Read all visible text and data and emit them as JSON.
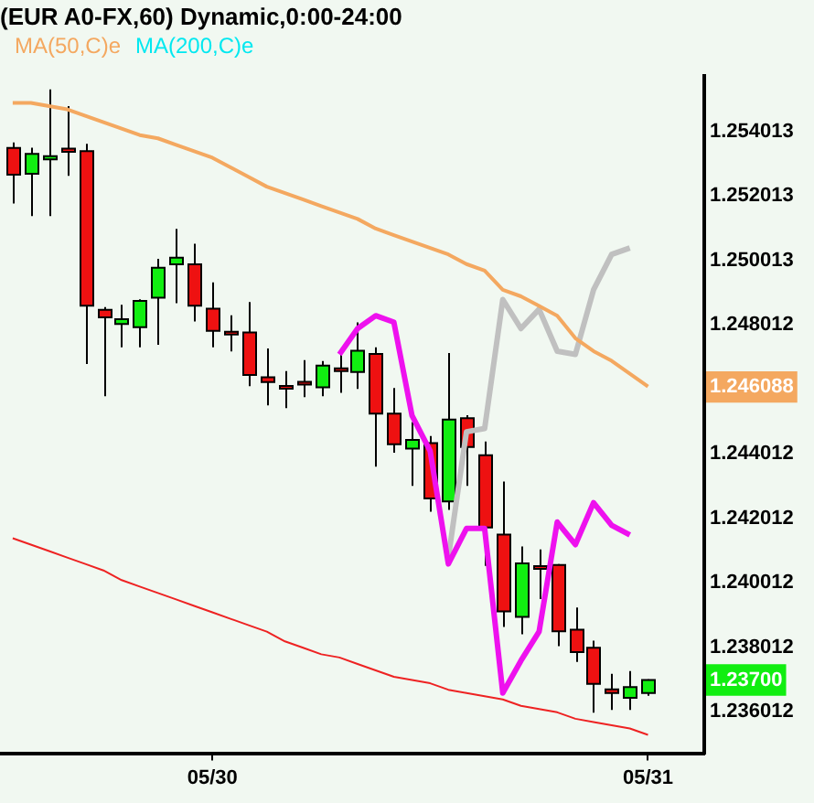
{
  "chart_data": {
    "type": "candlestick",
    "title": "(EUR A0-FX,60) Dynamic,0:00-24:00",
    "categories": [
      null,
      null,
      null,
      null,
      null,
      null,
      null,
      null,
      null,
      null,
      null,
      "05/30",
      null,
      null,
      null,
      null,
      null,
      null,
      null,
      null,
      null,
      null,
      null,
      null,
      null,
      null,
      null,
      null,
      null,
      null,
      null,
      null,
      null,
      null,
      null,
      "05/31"
    ],
    "ohlc": [
      [
        1.2535,
        1.25367,
        1.25178,
        1.25267
      ],
      [
        1.2527,
        1.25351,
        1.25139,
        1.25332
      ],
      [
        1.25315,
        1.25532,
        1.25139,
        1.25325
      ],
      [
        1.25348,
        1.2548,
        1.25264,
        1.25338
      ],
      [
        1.2534,
        1.25363,
        1.2468,
        1.24861
      ],
      [
        1.24848,
        1.24857,
        1.2458,
        1.24825
      ],
      [
        1.24804,
        1.24864,
        1.24732,
        1.24819
      ],
      [
        1.24794,
        1.24881,
        1.24732,
        1.24876
      ],
      [
        1.24886,
        1.25006,
        1.2474,
        1.24979
      ],
      [
        1.24989,
        1.25099,
        1.24869,
        1.2501
      ],
      [
        1.24989,
        1.25053,
        1.24812,
        1.24861
      ],
      [
        1.24852,
        1.24933,
        1.24732,
        1.24783
      ],
      [
        1.2478,
        1.24831,
        1.24719,
        1.24772
      ],
      [
        1.24778,
        1.24872,
        1.24611,
        1.24646
      ],
      [
        1.24639,
        1.24728,
        1.24552,
        1.24624
      ],
      [
        1.24612,
        1.24658,
        1.24543,
        1.24605
      ],
      [
        1.24625,
        1.24692,
        1.24577,
        1.24617
      ],
      [
        1.24608,
        1.24689,
        1.2458,
        1.24675
      ],
      [
        1.24667,
        1.24719,
        1.24591,
        1.24659
      ],
      [
        1.24655,
        1.24809,
        1.24603,
        1.24721
      ],
      [
        1.24711,
        1.24732,
        1.24362,
        1.24526
      ],
      [
        1.24526,
        1.24606,
        1.24405,
        1.24431
      ],
      [
        1.24418,
        1.245,
        1.24302,
        1.24445
      ],
      [
        1.24435,
        1.24457,
        1.24222,
        1.24263
      ],
      [
        1.24254,
        1.24714,
        1.24228,
        1.24508
      ],
      [
        1.24512,
        1.24521,
        1.24302,
        1.24423
      ],
      [
        1.24397,
        1.2444,
        1.24054,
        1.24173
      ],
      [
        1.24151,
        1.24316,
        1.23865,
        1.23913
      ],
      [
        1.23896,
        1.24114,
        1.23842,
        1.24062
      ],
      [
        1.24053,
        1.24105,
        1.23951,
        1.24045
      ],
      [
        1.24057,
        1.2406,
        1.23805,
        1.23851
      ],
      [
        1.23856,
        1.23925,
        1.23756,
        1.23787
      ],
      [
        1.238,
        1.23822,
        1.23599,
        1.23688
      ],
      [
        1.23671,
        1.23719,
        1.23607,
        1.2366
      ],
      [
        1.23645,
        1.23728,
        1.23607,
        1.23678
      ],
      [
        1.2366,
        1.23702,
        1.23651,
        1.237
      ]
    ],
    "series": [
      {
        "type": "line",
        "name": "MA(50,C)e",
        "color": "#f4a860",
        "values": [
          1.2549,
          1.2549,
          1.2548,
          1.2547,
          1.2545,
          1.2543,
          1.2541,
          1.2539,
          1.2538,
          1.2536,
          1.2534,
          1.2532,
          1.2529,
          1.2526,
          1.2523,
          1.2521,
          1.2519,
          1.2517,
          1.2515,
          1.2513,
          1.251,
          1.2508,
          1.2506,
          1.2504,
          1.2502,
          1.2499,
          1.2497,
          1.2491,
          1.2489,
          1.2486,
          1.2483,
          1.2476,
          1.2472,
          1.2469,
          1.2465,
          1.2461
        ]
      },
      {
        "type": "line",
        "name": "MA(200,C)e",
        "color": "#00e8f0",
        "values": [
          null,
          null,
          null,
          null,
          null,
          null,
          null,
          null,
          null,
          null,
          null,
          null,
          null,
          null,
          null,
          null,
          null,
          null,
          null,
          null,
          null,
          null,
          null,
          null,
          null,
          null,
          null,
          null,
          null,
          null,
          null,
          null,
          null,
          null,
          null,
          null
        ]
      },
      {
        "type": "line",
        "color": "#ee11ee",
        "values": [
          null,
          null,
          null,
          null,
          null,
          null,
          null,
          null,
          null,
          null,
          null,
          null,
          null,
          null,
          null,
          null,
          null,
          null,
          1.2471,
          1.2479,
          1.2483,
          1.2481,
          1.2452,
          1.2441,
          1.2406,
          1.2417,
          1.2417,
          1.2366,
          1.2376,
          1.2385,
          1.2419,
          1.2412,
          1.2425,
          1.2418,
          1.2415,
          null
        ]
      },
      {
        "type": "line",
        "color": "#c0c0c0",
        "values": [
          null,
          null,
          null,
          null,
          null,
          null,
          null,
          null,
          null,
          null,
          null,
          null,
          null,
          null,
          null,
          null,
          null,
          null,
          null,
          null,
          null,
          null,
          null,
          null,
          1.2408,
          1.2447,
          1.2448,
          1.2488,
          1.2479,
          1.2485,
          1.2472,
          1.2471,
          1.2491,
          1.2502,
          1.2504,
          null
        ]
      },
      {
        "type": "line",
        "color": "#ee2222",
        "values": [
          1.2414,
          1.2412,
          1.241,
          1.2408,
          1.2406,
          1.2404,
          1.2401,
          1.2399,
          1.2397,
          1.2395,
          1.2393,
          1.2391,
          1.2389,
          1.2387,
          1.2385,
          1.2382,
          1.238,
          1.2378,
          1.2377,
          1.2375,
          1.2373,
          1.2371,
          1.237,
          1.2369,
          1.2367,
          1.2366,
          1.2365,
          1.2364,
          1.2362,
          1.2361,
          1.236,
          1.2358,
          1.2357,
          1.2356,
          1.2355,
          1.2353
        ]
      }
    ],
    "ylim": [
      1.23473,
      1.25573
    ],
    "yticks": [
      1.236012,
      {
        "value": 1.237,
        "label": "1.23700"
      },
      1.238012,
      1.240012,
      1.242012,
      1.244012,
      1.246088,
      1.248012,
      1.250013,
      1.252013,
      1.254013
    ],
    "legend": "top left",
    "grid": false,
    "marker": "none"
  }
}
